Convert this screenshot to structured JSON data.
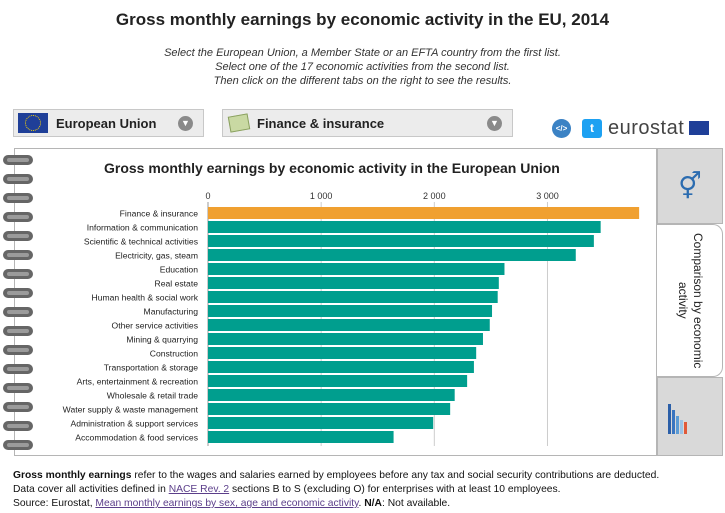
{
  "title": "Gross monthly earnings by economic activity in the EU, 2014",
  "instructions": [
    "Select the European Union, a Member State or an EFTA country from the first list.",
    "Select one of the 17 economic activities from the second list.",
    "Then click on the different tabs on the right to see the results."
  ],
  "selectors": {
    "country": {
      "label": "European Union",
      "icon": "eu-flag-icon"
    },
    "activity": {
      "label": "Finance & insurance",
      "icon": "money-icon"
    }
  },
  "brand": {
    "embed_glyph": "</>",
    "twitter_glyph": "t",
    "logo_text": "eurostat"
  },
  "tabs": {
    "gender_glyph": "⚥",
    "comparison_label": "Comparison by economic activity"
  },
  "colors": {
    "highlight": "#f0a030",
    "bar": "#009e8e",
    "grid": "#cccccc"
  },
  "chart_data": {
    "type": "bar",
    "orientation": "horizontal",
    "title": "Gross monthly earnings by economic activity in the European Union",
    "xlim": [
      0,
      3800
    ],
    "ticks": [
      0,
      1000,
      2000,
      3000
    ],
    "tick_labels": [
      "0",
      "1 000",
      "2 000",
      "3 000"
    ],
    "highlighted": "Finance & insurance",
    "categories": [
      "Finance & insurance",
      "Information & communication",
      "Scientific & technical activities",
      "Electricity, gas, steam",
      "Education",
      "Real estate",
      "Human health & social work",
      "Manufacturing",
      "Other service activities",
      "Mining & quarrying",
      "Construction",
      "Transportation & storage",
      "Arts, entertainment & recreation",
      "Wholesale & retail trade",
      "Water supply & waste management",
      "Administration & support services",
      "Accommodation & food services"
    ],
    "values": [
      3810,
      3470,
      3410,
      3250,
      2620,
      2570,
      2560,
      2510,
      2490,
      2430,
      2370,
      2350,
      2290,
      2180,
      2140,
      1990,
      1640
    ]
  },
  "footer": {
    "line1_bold": "Gross monthly earnings",
    "line1_rest": " refer to the wages and salaries earned by employees before any tax and social security contributions are deducted.",
    "line2_pre": "Data cover all activities defined in ",
    "line2_link": "NACE Rev. 2",
    "line2_post": " sections B to S (excluding O) for enterprises with at least 10 employees.",
    "line3_pre": "Source: Eurostat, ",
    "line3_link": "Mean monthly earnings by sex, age and economic activity",
    "line3_mid": ". ",
    "line3_bold": "N/A",
    "line3_post": ": Not available."
  }
}
